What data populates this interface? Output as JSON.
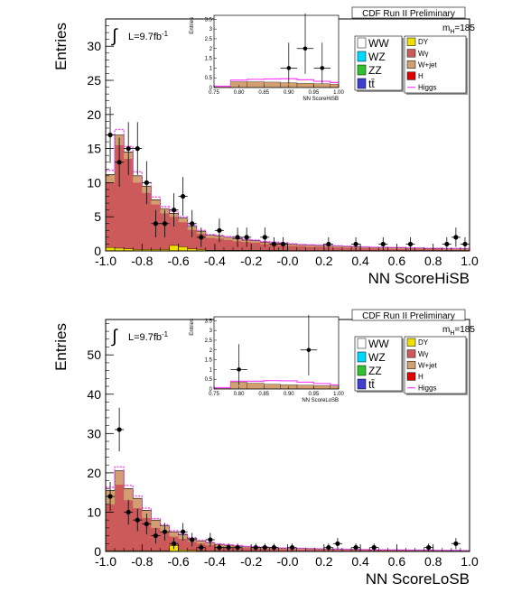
{
  "chart_data": [
    {
      "type": "histogram",
      "header": "CDF Run II Preliminary",
      "mass_label": "185",
      "lumi_value": "9.7",
      "ylabel": "Entries",
      "xlabel": "NN ScoreHiSB",
      "xlim": [
        -1.0,
        1.0
      ],
      "ylim": [
        0,
        34
      ],
      "x_ticks": [
        -1.0,
        -0.8,
        -0.6,
        -0.4,
        -0.2,
        -0.0,
        0.2,
        0.4,
        0.6,
        0.8,
        1.0
      ],
      "x_tick_labels": [
        "-1.0",
        "-0.8",
        "-0.6",
        "-0.4",
        "-0.2",
        "-0.0",
        "0.2",
        "0.4",
        "0.6",
        "0.8",
        "1.0"
      ],
      "y_ticks": [
        0,
        5,
        10,
        15,
        20,
        25,
        30
      ],
      "y_tick_labels": [
        "0",
        "5",
        "10",
        "15",
        "20",
        "25",
        "30"
      ],
      "bin_edges": [
        -1.0,
        -0.95,
        -0.9,
        -0.85,
        -0.8,
        -0.75,
        -0.7,
        -0.65,
        -0.6,
        -0.55,
        -0.5,
        -0.45,
        -0.4,
        -0.35,
        -0.3,
        -0.25,
        -0.2,
        -0.15,
        -0.1,
        -0.05,
        0.0,
        0.05,
        0.1,
        0.15,
        0.2,
        0.25,
        0.3,
        0.35,
        0.4,
        0.45,
        0.5,
        0.55,
        0.6,
        0.65,
        0.7,
        0.75,
        0.8,
        0.85,
        0.9,
        0.95,
        1.0
      ],
      "background_total": [
        11.2,
        17.0,
        14.5,
        11.0,
        9.5,
        7.5,
        6.2,
        5.5,
        4.8,
        3.6,
        2.9,
        2.3,
        2.2,
        2.0,
        1.8,
        1.6,
        1.5,
        1.3,
        1.2,
        1.1,
        1.0,
        0.9,
        0.85,
        0.8,
        0.75,
        0.7,
        0.65,
        0.6,
        0.55,
        0.5,
        0.5,
        0.45,
        0.45,
        0.4,
        0.4,
        0.35,
        0.35,
        0.3,
        0.3,
        0.3
      ],
      "background_main": [
        10.0,
        15.5,
        13.5,
        10.0,
        8.5,
        6.8,
        5.5,
        5.0,
        4.2,
        3.1,
        2.5,
        1.9,
        1.8,
        1.6,
        1.4,
        1.3,
        1.2,
        1.0,
        0.9,
        0.8,
        0.75,
        0.7,
        0.6,
        0.6,
        0.55,
        0.5,
        0.45,
        0.45,
        0.4,
        0.35,
        0.35,
        0.3,
        0.3,
        0.3,
        0.25,
        0.25,
        0.25,
        0.2,
        0.2,
        0.2
      ],
      "background_minor": [
        0.5,
        0.4,
        0.3,
        0.2,
        0.2,
        0.2,
        0.2,
        0.8,
        0.6,
        0.3,
        0.2,
        0.1,
        0.1,
        0.1,
        0.1,
        0.1,
        0.1,
        0.1,
        0.1,
        0.1,
        0.05,
        0.05,
        0.05,
        0.05,
        0.05,
        0.05,
        0.05,
        0.05,
        0.05,
        0.05,
        0.05,
        0.05,
        0.05,
        0.05,
        0.05,
        0.05,
        0.05,
        0.05,
        0.05,
        0.05
      ],
      "signal_stack_total": [
        11.8,
        17.8,
        15.3,
        11.6,
        10.0,
        7.9,
        6.5,
        5.8,
        5.0,
        3.8,
        3.0,
        2.4,
        2.3,
        2.1,
        1.9,
        1.7,
        1.6,
        1.4,
        1.3,
        1.2,
        1.05,
        0.95,
        0.9,
        0.85,
        0.8,
        0.75,
        0.7,
        0.65,
        0.6,
        0.55,
        0.55,
        0.5,
        0.5,
        0.45,
        0.45,
        0.4,
        0.4,
        0.35,
        0.35,
        0.35
      ],
      "data_x": [
        -0.975,
        -0.925,
        -0.875,
        -0.825,
        -0.775,
        -0.725,
        -0.675,
        -0.625,
        -0.575,
        -0.525,
        -0.475,
        -0.375,
        -0.275,
        -0.225,
        -0.125,
        -0.075,
        -0.025,
        0.225,
        0.375,
        0.525,
        0.675,
        0.875,
        0.925,
        0.975
      ],
      "data_y": [
        17,
        13,
        15,
        15,
        10,
        4,
        4,
        6,
        8,
        4,
        2,
        3,
        2,
        2,
        2,
        1,
        1,
        1,
        1,
        1,
        1,
        1,
        2,
        1
      ],
      "inset": {
        "ylabel": "Entries",
        "xlabel": "NN ScoreHiSB",
        "xlim": [
          0.75,
          1.0
        ],
        "ylim": [
          0,
          3.7
        ],
        "x_ticks": [
          0.75,
          0.8,
          0.85,
          0.9,
          0.95,
          1.0
        ],
        "x_tick_labels": [
          "0.75",
          "0.80",
          "0.85",
          "0.90",
          "0.95",
          "1.00"
        ],
        "y_ticks": [
          0,
          0.5,
          1.0,
          1.5,
          2.0,
          2.5,
          3.0,
          3.5
        ],
        "y_tick_labels": [
          "0",
          "0.5",
          "1",
          "1.5",
          "2",
          "2.5",
          "3",
          "3.5"
        ],
        "bin_edges": [
          0.75,
          0.7833,
          0.8167,
          0.85,
          0.8833,
          0.9167,
          0.95,
          0.9833,
          1.0
        ],
        "background": [
          0.05,
          0.3,
          0.3,
          0.28,
          0.25,
          0.22,
          0.2,
          0.18
        ],
        "signal": [
          0.02,
          0.08,
          0.12,
          0.16,
          0.2,
          0.18,
          0.12,
          0.08
        ],
        "data_x": [
          0.9,
          0.933,
          0.967
        ],
        "data_y": [
          1,
          2,
          1
        ],
        "data_xerr": 0.0167,
        "data_yerr": [
          [
            0.8,
            1.3
          ],
          [
            1.3,
            1.8
          ],
          [
            0.8,
            1.3
          ]
        ]
      },
      "legend": {
        "left": [
          {
            "name": "WW",
            "color": "#ffffff"
          },
          {
            "name": "WZ",
            "color": "#00d8ff"
          },
          {
            "name": "ZZ",
            "color": "#30c030"
          },
          {
            "name": "tt̄",
            "color": "#4040d0"
          }
        ],
        "right": [
          {
            "name": "DY",
            "color": "#f0e000"
          },
          {
            "name": "Wγ",
            "color": "#cc5a5a"
          },
          {
            "name": "W+jet",
            "color": "#d2a070"
          },
          {
            "name": "H",
            "color": "#e00000"
          },
          {
            "name": "Higgs",
            "color": "#ff40ff",
            "style": "line"
          }
        ]
      }
    },
    {
      "type": "histogram",
      "header": "CDF Run II Preliminary",
      "mass_label": "185",
      "lumi_value": "9.7",
      "ylabel": "Entries",
      "xlabel": "NN ScoreLoSB",
      "xlim": [
        -1.0,
        1.0
      ],
      "ylim": [
        0,
        59
      ],
      "x_ticks": [
        -1.0,
        -0.8,
        -0.6,
        -0.4,
        -0.2,
        -0.0,
        0.2,
        0.4,
        0.6,
        0.8,
        1.0
      ],
      "x_tick_labels": [
        "-1.0",
        "-0.8",
        "-0.6",
        "-0.4",
        "-0.2",
        "-0.0",
        "0.2",
        "0.4",
        "0.6",
        "0.8",
        "1.0"
      ],
      "y_ticks": [
        0,
        10,
        20,
        30,
        40,
        50
      ],
      "y_tick_labels": [
        "0",
        "10",
        "20",
        "30",
        "40",
        "50"
      ],
      "bin_edges": [
        -1.0,
        -0.95,
        -0.9,
        -0.85,
        -0.8,
        -0.75,
        -0.7,
        -0.65,
        -0.6,
        -0.55,
        -0.5,
        -0.45,
        -0.4,
        -0.35,
        -0.3,
        -0.25,
        -0.2,
        -0.15,
        -0.1,
        -0.05,
        0.0,
        0.05,
        0.1,
        0.15,
        0.2,
        0.25,
        0.3,
        0.35,
        0.4,
        0.45,
        0.5,
        0.55,
        0.6,
        0.65,
        0.7,
        0.75,
        0.8,
        0.85,
        0.9,
        0.95,
        1.0
      ],
      "background_total": [
        15.5,
        20.5,
        16.0,
        13.5,
        10.5,
        8.0,
        6.5,
        5.0,
        4.2,
        3.3,
        2.7,
        2.2,
        1.8,
        1.6,
        1.4,
        1.2,
        1.1,
        1.0,
        0.9,
        0.85,
        0.8,
        0.75,
        0.7,
        0.65,
        0.6,
        0.55,
        0.5,
        0.5,
        0.45,
        0.4,
        0.4,
        0.35,
        0.35,
        0.3,
        0.3,
        0.3,
        0.25,
        0.25,
        0.25,
        0.2
      ],
      "background_main": [
        12.0,
        17.0,
        13.0,
        11.0,
        8.5,
        6.0,
        5.0,
        3.8,
        3.2,
        2.5,
        2.0,
        1.6,
        1.3,
        1.1,
        1.0,
        0.9,
        0.8,
        0.7,
        0.65,
        0.6,
        0.55,
        0.5,
        0.5,
        0.45,
        0.4,
        0.4,
        0.35,
        0.35,
        0.3,
        0.3,
        0.3,
        0.25,
        0.25,
        0.2,
        0.2,
        0.2,
        0.2,
        0.15,
        0.15,
        0.15
      ],
      "background_minor": [
        0.2,
        0.2,
        0.2,
        0.2,
        0.2,
        0.2,
        0.2,
        1.5,
        0.4,
        0.3,
        0.2,
        0.1,
        0.1,
        0.1,
        0.1,
        0.1,
        0.1,
        0.1,
        0.05,
        0.05,
        0.05,
        0.05,
        0.05,
        0.05,
        0.05,
        0.05,
        0.05,
        0.05,
        0.05,
        0.05,
        0.05,
        0.05,
        0.05,
        0.05,
        0.05,
        0.05,
        0.05,
        0.05,
        0.05,
        0.05
      ],
      "signal_stack_total": [
        16.3,
        21.5,
        16.8,
        14.1,
        11.0,
        8.4,
        6.8,
        5.3,
        4.4,
        3.5,
        2.85,
        2.3,
        1.9,
        1.7,
        1.5,
        1.3,
        1.2,
        1.1,
        1.0,
        0.9,
        0.85,
        0.8,
        0.75,
        0.7,
        0.65,
        0.6,
        0.55,
        0.55,
        0.5,
        0.45,
        0.45,
        0.4,
        0.4,
        0.35,
        0.35,
        0.35,
        0.3,
        0.3,
        0.3,
        0.25
      ],
      "data_x": [
        -0.975,
        -0.925,
        -0.875,
        -0.825,
        -0.775,
        -0.725,
        -0.675,
        -0.625,
        -0.575,
        -0.525,
        -0.475,
        -0.425,
        -0.375,
        -0.325,
        -0.275,
        -0.175,
        -0.125,
        -0.075,
        0.025,
        0.225,
        0.275,
        0.375,
        0.475,
        0.775,
        0.925
      ],
      "data_y": [
        14,
        31,
        10,
        8,
        7,
        4,
        5,
        2,
        5,
        3,
        1,
        3,
        1,
        1,
        1,
        1,
        1,
        1,
        1,
        1,
        2,
        1,
        1,
        1,
        2
      ],
      "inset": {
        "ylabel": "Entries",
        "xlabel": "NN ScoreLoSB",
        "xlim": [
          0.75,
          1.0
        ],
        "ylim": [
          0,
          3.7
        ],
        "x_ticks": [
          0.75,
          0.8,
          0.85,
          0.9,
          0.95,
          1.0
        ],
        "x_tick_labels": [
          "0.75",
          "0.80",
          "0.85",
          "0.90",
          "0.95",
          "1.00"
        ],
        "y_ticks": [
          0,
          0.5,
          1.0,
          1.5,
          2.0,
          2.5,
          3.0,
          3.5
        ],
        "y_tick_labels": [
          "0",
          "0.5",
          "1",
          "1.5",
          "2",
          "2.5",
          "3",
          "3.5"
        ],
        "bin_edges": [
          0.75,
          0.7833,
          0.8167,
          0.85,
          0.8833,
          0.9167,
          0.95,
          0.9833,
          1.0
        ],
        "background": [
          0.05,
          0.35,
          0.3,
          0.25,
          0.22,
          0.2,
          0.18,
          0.15
        ],
        "signal": [
          0.02,
          0.05,
          0.1,
          0.18,
          0.2,
          0.15,
          0.1,
          0.06
        ],
        "data_x": [
          0.8,
          0.94
        ],
        "data_y": [
          1,
          2
        ],
        "data_xerr": 0.0167,
        "data_yerr": [
          [
            0.8,
            1.3
          ],
          [
            1.3,
            1.8
          ]
        ]
      },
      "legend": {
        "left": [
          {
            "name": "WW",
            "color": "#ffffff"
          },
          {
            "name": "WZ",
            "color": "#00d8ff"
          },
          {
            "name": "ZZ",
            "color": "#30c030"
          },
          {
            "name": "tt̄",
            "color": "#4040d0"
          }
        ],
        "right": [
          {
            "name": "DY",
            "color": "#f0e000"
          },
          {
            "name": "Wγ",
            "color": "#cc5a5a"
          },
          {
            "name": "W+jet",
            "color": "#d2a070"
          },
          {
            "name": "H",
            "color": "#e00000"
          },
          {
            "name": "Higgs",
            "color": "#ff40ff",
            "style": "line"
          }
        ]
      }
    }
  ],
  "colors": {
    "main_fill": "#cc5a5a",
    "top_fill": "#d2a070",
    "minor_fill": "#f0e000",
    "signal_line": "#ff40ff",
    "data": "#000000"
  }
}
